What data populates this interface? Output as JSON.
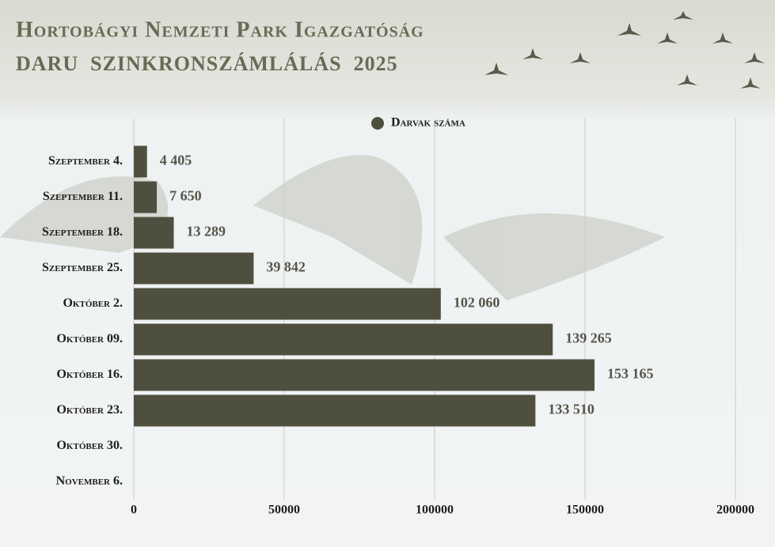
{
  "chart_data": {
    "type": "bar",
    "orientation": "horizontal",
    "title": "Hortobágyi Nemzeti Park Igazgatóság",
    "subtitle": "DARU  SZINKRONSZÁMLÁLÁS  2025",
    "categories": [
      "Szeptember 4.",
      "Szeptember 11.",
      "Szeptember 18.",
      "Szeptember 25.",
      "Október 2.",
      "Október 09.",
      "Október 16.",
      "Október 23.",
      "Október 30.",
      "November 6."
    ],
    "series": [
      {
        "name": "Darvak száma",
        "color": "#4f4f3f",
        "values": [
          4405,
          7650,
          13289,
          39842,
          102060,
          139265,
          153165,
          133510,
          null,
          null
        ],
        "value_labels": [
          "4 405",
          "7 650",
          "13 289",
          "39 842",
          "102 060",
          "139 265",
          "153 165",
          "133 510",
          null,
          null
        ]
      }
    ],
    "xlim": [
      0,
      200000
    ],
    "xticks": [
      0,
      50000,
      100000,
      150000,
      200000
    ],
    "grid": true,
    "legend": "top"
  }
}
